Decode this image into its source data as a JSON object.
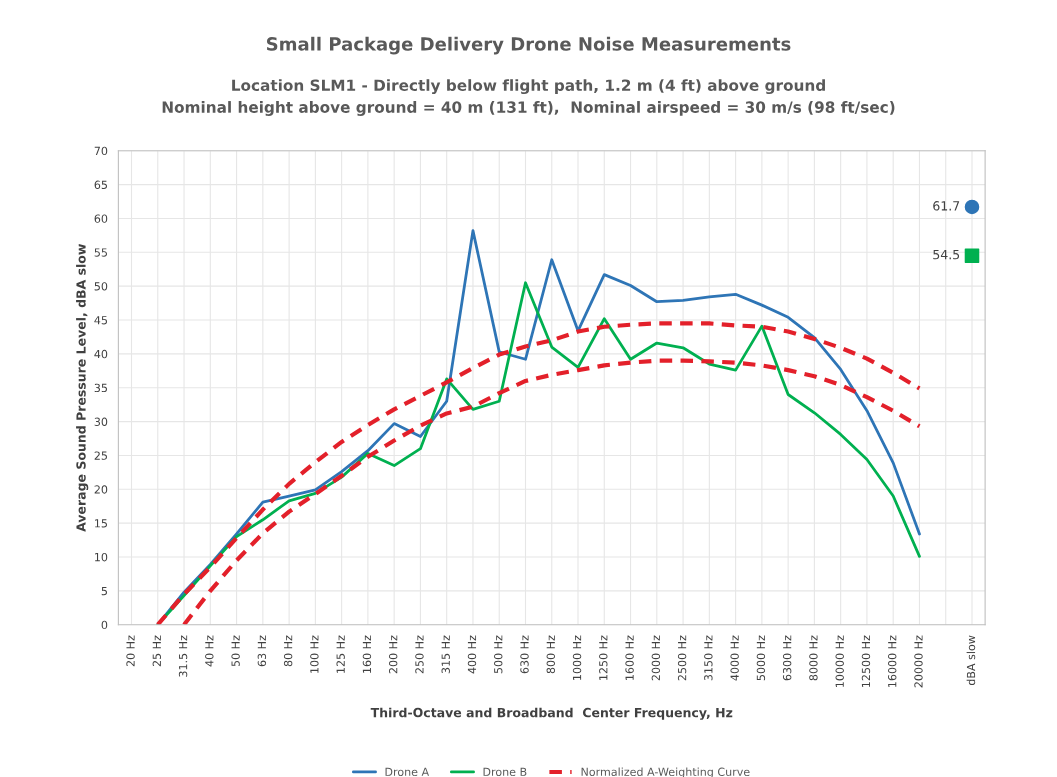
{
  "chart_data": {
    "type": "line",
    "title": "Small Package Delivery Drone Noise Measurements",
    "subtitle": "Location SLM1 - Directly below flight path, 1.2 m (4 ft) above ground\nNominal height above ground = 40 m (131 ft),  Nominal airspeed = 30 m/s (98 ft/sec)",
    "xlabel": "Third-Octave and Broadband  Center Frequency, Hz",
    "ylabel": "Average Sound Pressure Level, dBA slow",
    "categories": [
      "20 Hz",
      "25 Hz",
      "31.5 Hz",
      "40 Hz",
      "50 Hz",
      "63 Hz",
      "80 Hz",
      "100 Hz",
      "125 Hz",
      "160 Hz",
      "200 Hz",
      "250 Hz",
      "315 Hz",
      "400 Hz",
      "500 Hz",
      "630 Hz",
      "800 Hz",
      "1000 Hz",
      "1250 Hz",
      "1600 Hz",
      "2000 Hz",
      "2500 Hz",
      "3150 Hz",
      "4000 Hz",
      "5000 Hz",
      "6300 Hz",
      "8000 Hz",
      "10000 Hz",
      "12500 Hz",
      "16000 Hz",
      "20000 Hz",
      null,
      "dBA slow"
    ],
    "ylim": [
      0,
      70
    ],
    "yticks": [
      0,
      5,
      10,
      15,
      20,
      25,
      30,
      35,
      40,
      45,
      50,
      55,
      60,
      65,
      70
    ],
    "grid": true,
    "legend": "bottom",
    "series": [
      {
        "name": "Drone A",
        "color": "#2e75b6",
        "line_style": "solid",
        "values": [
          null,
          0,
          4.8,
          8.9,
          13.4,
          18.1,
          19.0,
          19.9,
          22.6,
          25.7,
          29.7,
          27.8,
          33.0,
          58.2,
          40.3,
          39.2,
          53.9,
          43.4,
          51.7,
          50.1,
          47.7,
          47.9,
          48.4,
          48.8,
          47.2,
          45.4,
          42.4,
          37.7,
          31.6,
          23.9,
          13.4,
          null,
          null
        ]
      },
      {
        "name": "Drone B",
        "color": "#00b050",
        "line_style": "solid",
        "values": [
          null,
          0,
          4.3,
          8.7,
          13.0,
          15.5,
          18.3,
          19.4,
          21.8,
          25.3,
          23.5,
          26.0,
          36.3,
          31.8,
          33.0,
          50.5,
          41.0,
          38.0,
          45.2,
          39.2,
          41.6,
          40.9,
          38.5,
          37.6,
          44.1,
          34.0,
          31.3,
          28.1,
          24.4,
          19.0,
          10.1,
          null,
          null
        ]
      },
      {
        "name": "Normalized A-Weighting Curve",
        "color": "#e3202a",
        "line_style": "dashed",
        "values": [
          null,
          0,
          4.5,
          8.5,
          12.8,
          17.0,
          20.8,
          24.0,
          27.0,
          29.5,
          31.8,
          33.8,
          35.8,
          37.9,
          39.9,
          41.1,
          42.0,
          43.3,
          44.0,
          44.3,
          44.5,
          44.5,
          44.5,
          44.2,
          44.0,
          43.3,
          42.2,
          40.9,
          39.3,
          37.2,
          34.9,
          null,
          null
        ]
      },
      {
        "color": "#e3202a",
        "line_style": "dashed",
        "values": [
          null,
          null,
          0,
          5.0,
          9.5,
          13.5,
          16.7,
          19.3,
          22.0,
          24.8,
          27.2,
          29.4,
          31.2,
          32.2,
          34.2,
          36.0,
          36.9,
          37.6,
          38.3,
          38.7,
          39.0,
          39.0,
          38.9,
          38.7,
          38.3,
          37.6,
          36.7,
          35.4,
          33.6,
          31.6,
          29.3,
          null,
          null
        ]
      },
      {
        "type": "scatter",
        "color": "#2e75b6",
        "marker": "circle",
        "x": [
          "dBA slow"
        ],
        "values": [
          61.7
        ],
        "value_labels": [
          "61.7"
        ]
      },
      {
        "type": "scatter",
        "color": "#00b050",
        "marker": "square",
        "x": [
          "dBA slow"
        ],
        "values": [
          54.5
        ],
        "value_labels": [
          "54.5"
        ]
      }
    ]
  }
}
